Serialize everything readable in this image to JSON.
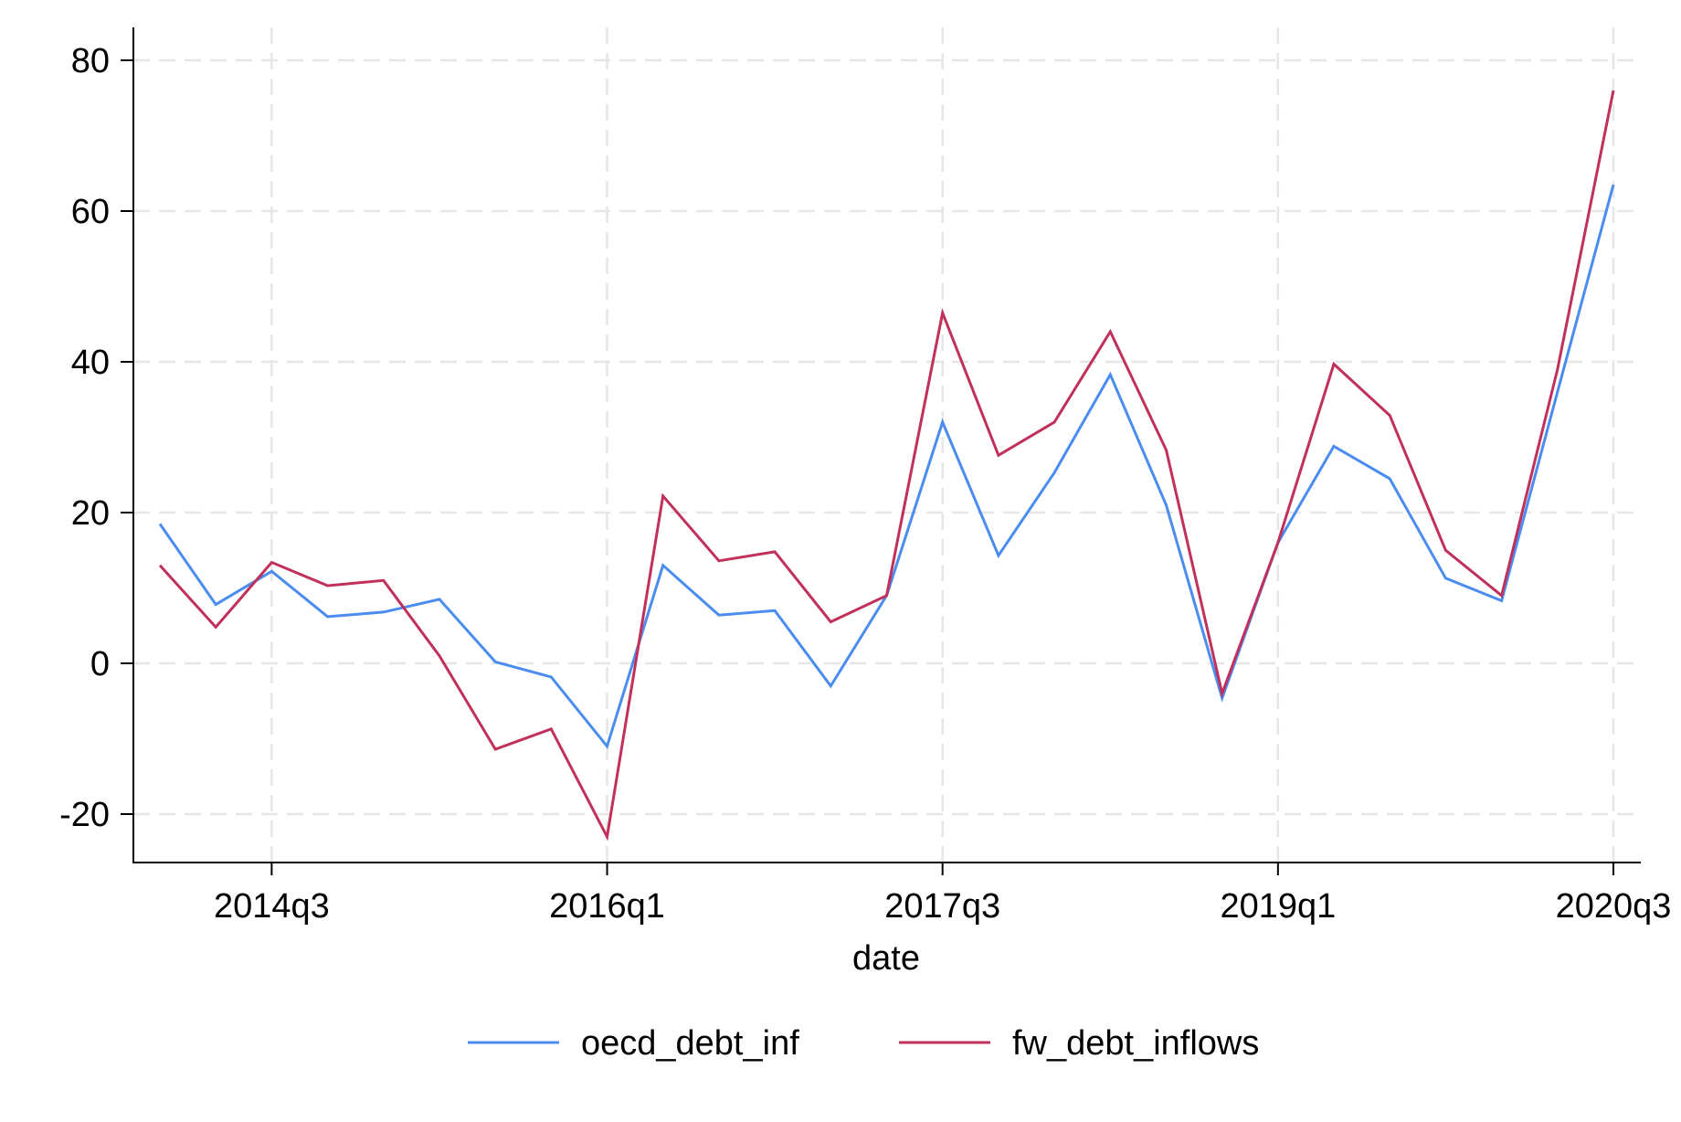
{
  "chart_data": {
    "type": "line",
    "title": "",
    "xlabel": "date",
    "ylabel": "",
    "x": [
      "2014q1",
      "2014q2",
      "2014q3",
      "2014q4",
      "2015q1",
      "2015q2",
      "2015q3",
      "2015q4",
      "2016q1",
      "2016q2",
      "2016q3",
      "2016q4",
      "2017q1",
      "2017q2",
      "2017q3",
      "2017q4",
      "2018q1",
      "2018q2",
      "2018q3",
      "2018q4",
      "2019q1",
      "2019q2",
      "2019q3",
      "2019q4",
      "2020q1",
      "2020q2",
      "2020q3"
    ],
    "series": [
      {
        "name": "oecd_debt_inf",
        "color": "#4a8cf0",
        "values": [
          18.5,
          7.8,
          12.2,
          6.2,
          6.8,
          8.5,
          0.2,
          -1.8,
          -11.0,
          13.0,
          6.4,
          7.0,
          -3.0,
          9.0,
          32.0,
          14.3,
          25.3,
          38.3,
          21.0,
          -4.6,
          16.0,
          28.8,
          24.5,
          11.3,
          8.3,
          36.0,
          63.5
        ]
      },
      {
        "name": "fw_debt_inflows",
        "color": "#c0305a",
        "values": [
          13.0,
          4.8,
          13.4,
          10.3,
          11.0,
          1.0,
          -11.4,
          -8.7,
          -23.0,
          22.2,
          13.6,
          14.8,
          5.5,
          9.0,
          46.5,
          27.6,
          32.0,
          44.0,
          28.3,
          -4.0,
          16.0,
          39.7,
          32.9,
          15.0,
          9.0,
          39.0,
          76.0
        ]
      }
    ],
    "xticks": [
      "2014q3",
      "2016q1",
      "2017q3",
      "2019q1",
      "2020q3"
    ],
    "yticks": [
      "-20",
      "0",
      "20",
      "40",
      "60",
      "80"
    ],
    "ylim": [
      -26.5,
      83
    ],
    "grid": true,
    "legend_position": "bottom"
  }
}
